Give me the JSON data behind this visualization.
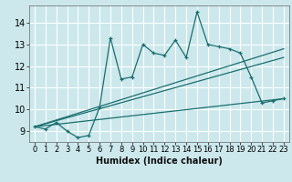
{
  "title": "",
  "xlabel": "Humidex (Indice chaleur)",
  "bg_color": "#cce8ec",
  "grid_color": "#ffffff",
  "line_color": "#1a6e6e",
  "xlim": [
    -0.5,
    23.5
  ],
  "ylim": [
    8.5,
    14.8
  ],
  "x_data": [
    0,
    1,
    2,
    3,
    4,
    5,
    6,
    7,
    8,
    9,
    10,
    11,
    12,
    13,
    14,
    15,
    16,
    17,
    18,
    19,
    20,
    21,
    22,
    23
  ],
  "y_data": [
    9.2,
    9.1,
    9.4,
    9.0,
    8.7,
    8.8,
    10.1,
    13.3,
    11.4,
    11.5,
    13.0,
    12.6,
    12.5,
    13.2,
    12.4,
    14.5,
    13.0,
    12.9,
    12.8,
    12.6,
    11.5,
    10.3,
    10.4,
    10.5
  ],
  "trend1_x": [
    0,
    23
  ],
  "trend1_y": [
    9.2,
    12.8
  ],
  "trend2_x": [
    0,
    23
  ],
  "trend2_y": [
    9.2,
    12.4
  ],
  "trend3_x": [
    0,
    23
  ],
  "trend3_y": [
    9.2,
    10.5
  ],
  "xticks": [
    0,
    1,
    2,
    3,
    4,
    5,
    6,
    7,
    8,
    9,
    10,
    11,
    12,
    13,
    14,
    15,
    16,
    17,
    18,
    19,
    20,
    21,
    22,
    23
  ],
  "yticks": [
    9,
    10,
    11,
    12,
    13,
    14
  ],
  "tick_fontsize": 6,
  "xlabel_fontsize": 7
}
